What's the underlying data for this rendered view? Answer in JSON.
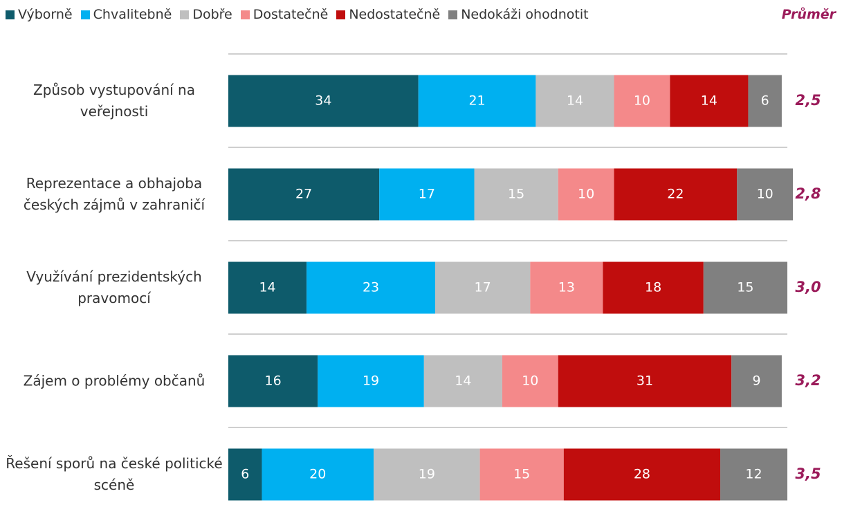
{
  "chart_data": {
    "type": "stacked-bar-horizontal",
    "categories": [
      "Způsob vystupování na veřejnosti",
      "Reprezentace a obhajoba českých zájmů v zahraničí",
      "Využívání prezidentských pravomocí",
      "Zájem o problémy občanů",
      "Řešení sporů na české politické scéně"
    ],
    "series": [
      {
        "name": "Výborně",
        "color": "#0e5b6b",
        "values": [
          34,
          27,
          14,
          16,
          6
        ]
      },
      {
        "name": "Chvalitebně",
        "color": "#00b0f0",
        "values": [
          21,
          17,
          23,
          19,
          20
        ]
      },
      {
        "name": "Dobře",
        "color": "#bfbfbf",
        "values": [
          14,
          15,
          17,
          14,
          19
        ]
      },
      {
        "name": "Dostatečně",
        "color": "#f4898a",
        "values": [
          10,
          10,
          13,
          10,
          15
        ]
      },
      {
        "name": "Nedostatečně",
        "color": "#c00d0d",
        "values": [
          14,
          22,
          18,
          31,
          28
        ]
      },
      {
        "name": "Nedokáži ohodnotit",
        "color": "#808080",
        "values": [
          6,
          10,
          15,
          9,
          12
        ]
      }
    ],
    "xlim": [
      0,
      100
    ],
    "average_title": "Průměr",
    "averages": [
      2.5,
      2.8,
      3.0,
      3.2,
      3.5
    ],
    "average_labels": [
      "2,5",
      "2,8",
      "3,0",
      "3,2",
      "3,5"
    ],
    "average_color": "#9b1b5a"
  }
}
